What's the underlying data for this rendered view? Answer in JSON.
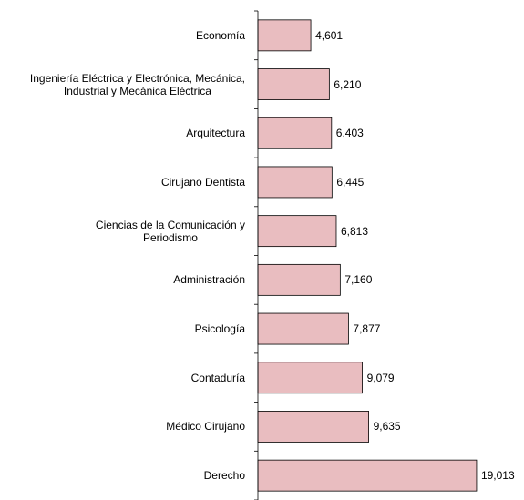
{
  "chart_data": {
    "type": "bar",
    "orientation": "horizontal",
    "categories": [
      "Economía",
      "Ingeniería Eléctrica y Electrónica, Mecánica,\nIndustrial y Mecánica Eléctrica",
      "Arquitectura",
      "Cirujano Dentista",
      "Ciencias de la Comunicación y\nPeriodismo",
      "Administración",
      "Psicología",
      "Contaduría",
      "Médico Cirujano",
      "Derecho"
    ],
    "values": [
      4601,
      6210,
      6403,
      6445,
      6813,
      7160,
      7877,
      9079,
      9635,
      19013
    ],
    "value_labels": [
      "4,601",
      "6,210",
      "6,403",
      "6,445",
      "6,813",
      "7,160",
      "7,877",
      "9,079",
      "9,635",
      "19,013"
    ],
    "color": "#e9bdc0"
  }
}
